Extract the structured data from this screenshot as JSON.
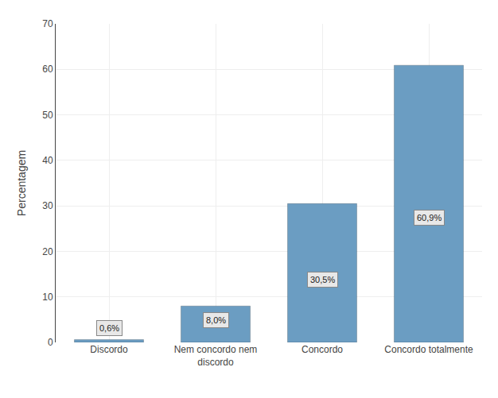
{
  "chart_data": {
    "type": "bar",
    "categories": [
      "Discordo",
      "Nem concordo nem\ndiscordo",
      "Concordo",
      "Concordo totalmente"
    ],
    "values": [
      0.6,
      8.0,
      30.5,
      60.9
    ],
    "value_labels": [
      "0,6%",
      "8,0%",
      "30,5%",
      "60,9%"
    ],
    "data_labels": true,
    "color": "#6b9dc2",
    "ylabel": "Percentagem",
    "ylim": [
      0,
      70
    ],
    "yticks": [
      0,
      10,
      20,
      30,
      40,
      50,
      60,
      70
    ],
    "grid": true
  }
}
